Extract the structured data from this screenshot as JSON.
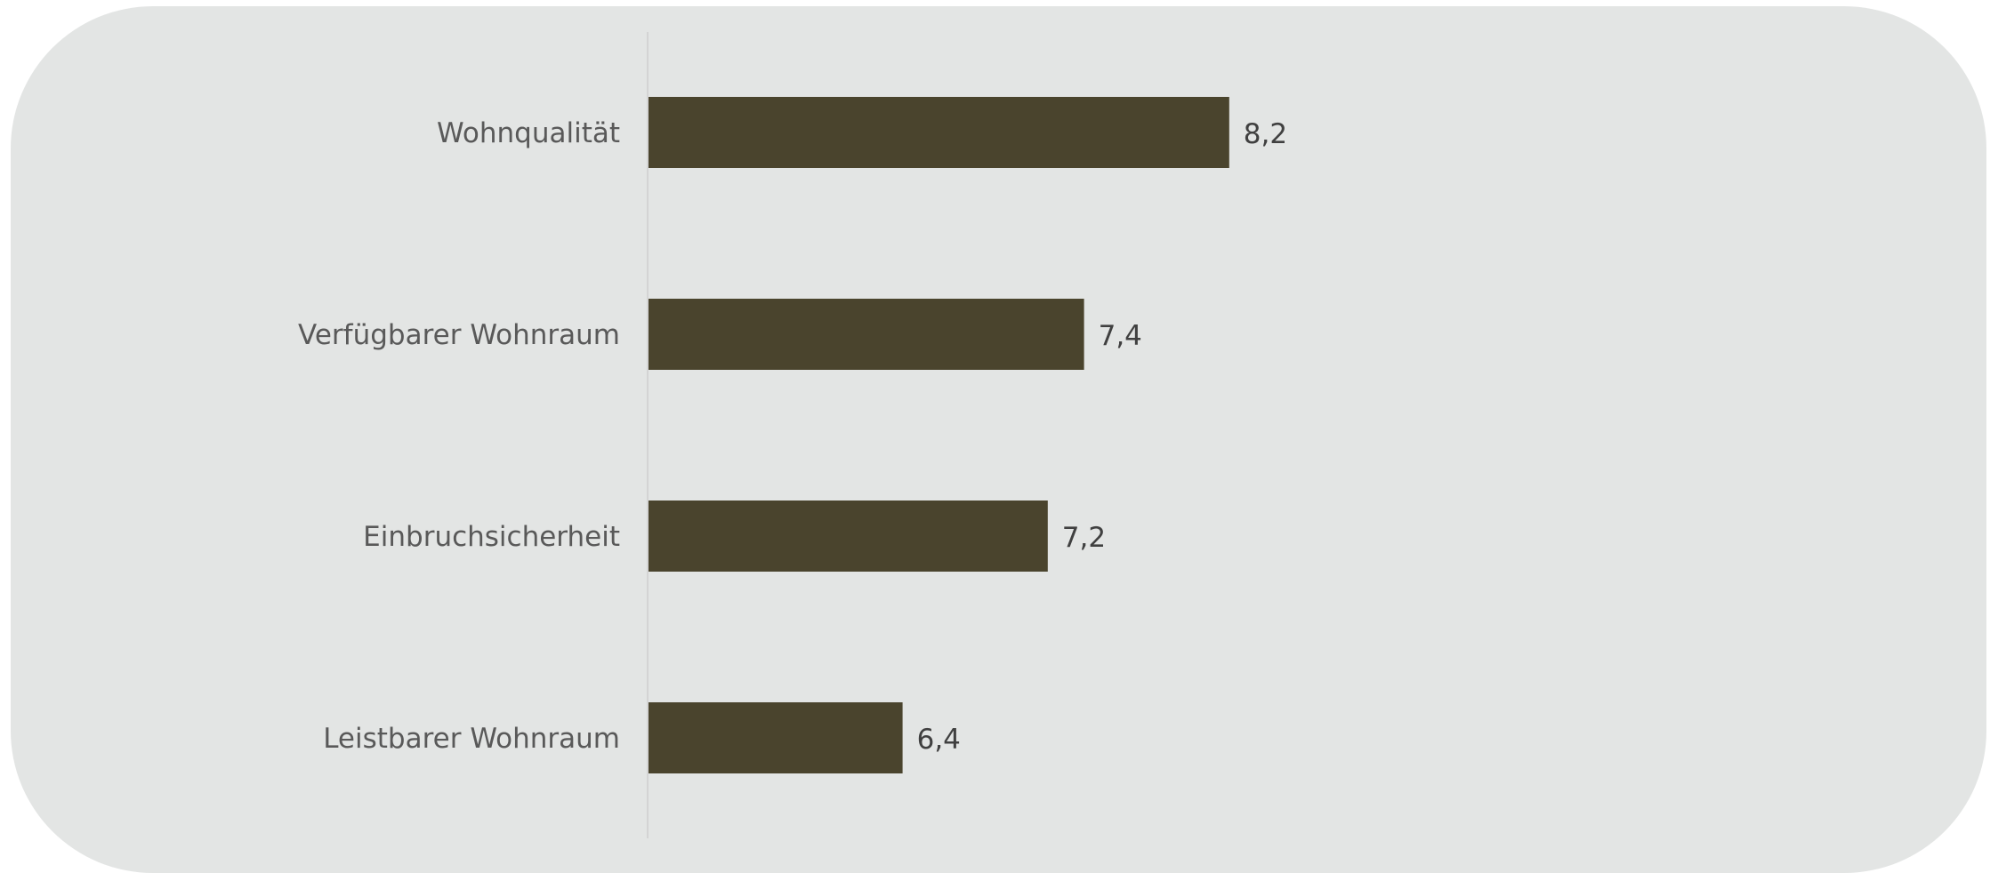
{
  "chart_data": {
    "type": "bar",
    "orientation": "horizontal",
    "categories": [
      "Wohnqualität",
      "Verfügbarer Wohnraum",
      "Einbruchsicherheit",
      "Leistbarer Wohnraum"
    ],
    "values": [
      8.2,
      7.4,
      7.2,
      6.4
    ],
    "value_labels": [
      "8,2",
      "7,4",
      "7,2",
      "6,4"
    ],
    "title": "",
    "xlabel": "",
    "ylabel": "",
    "xlim": [
      5,
      10
    ],
    "grid": false,
    "legend": "none",
    "colors": {
      "panel": "#e3e5e4",
      "bar": "#4a442d",
      "axis": "#cfcfcf",
      "category_text": "#595959",
      "value_text": "#404040"
    }
  }
}
